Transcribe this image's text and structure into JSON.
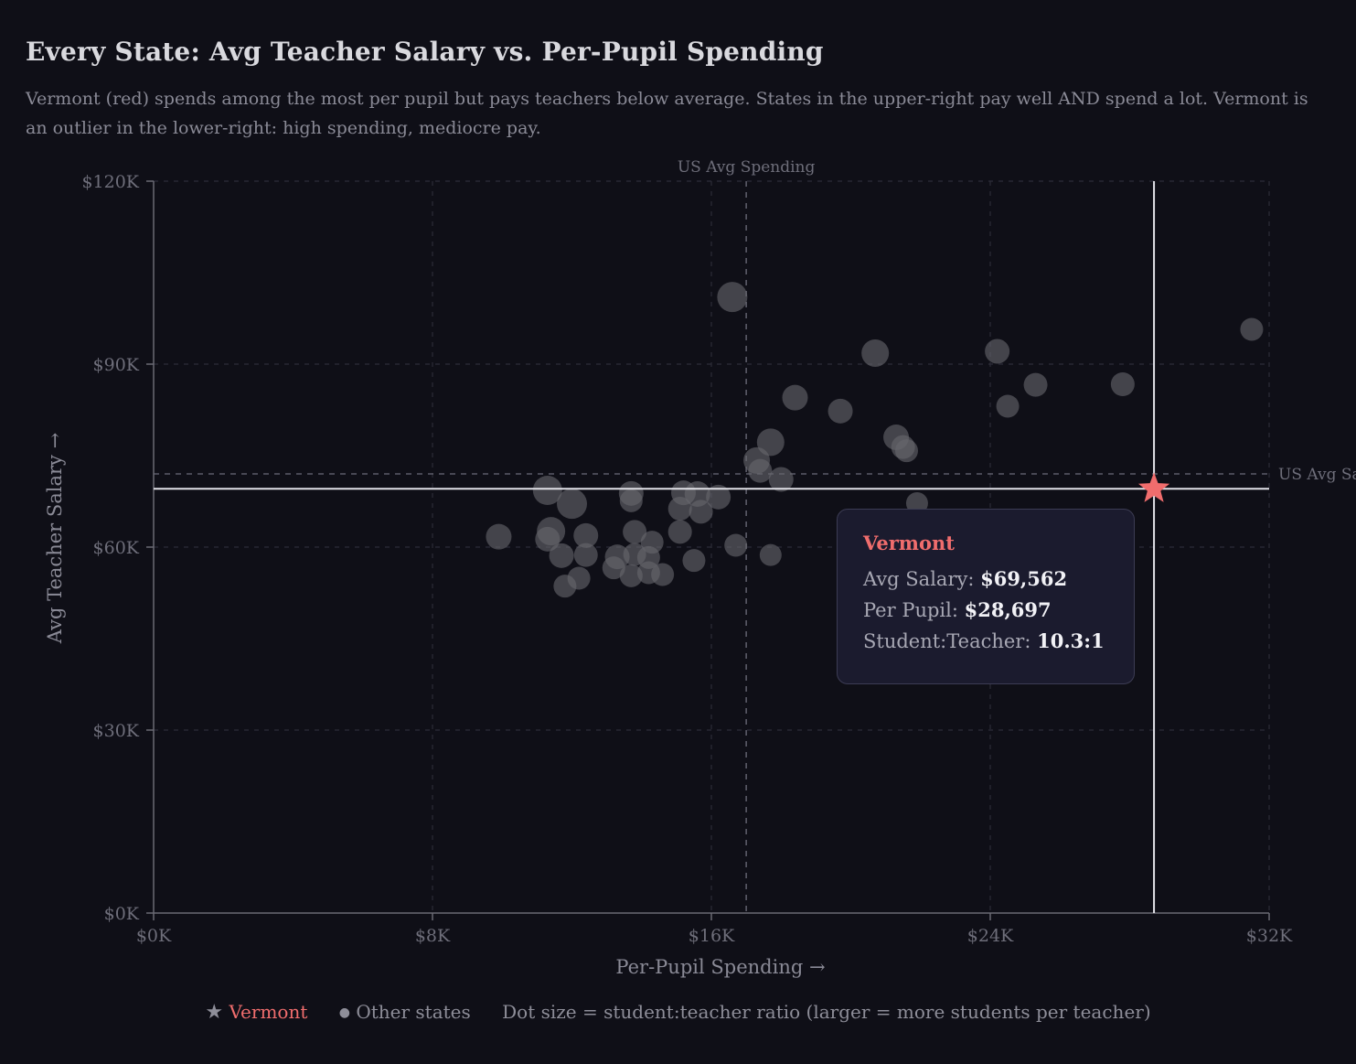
{
  "header": {
    "title": "Every State: Avg Teacher Salary vs. Per-Pupil Spending",
    "subtitle": "Vermont (red) spends among the most per pupil but pays teachers below average. States in the upper-right pay well AND spend a lot. Vermont is an outlier in the lower-right: high spending, mediocre pay."
  },
  "colors": {
    "background": "#0f0f17",
    "highlight": "#f06d6d",
    "dots": "#5a5a60",
    "grid": "#2c2c38",
    "axis": "#6a6a74"
  },
  "chart_data": {
    "type": "scatter",
    "title": "Every State: Avg Teacher Salary vs. Per-Pupil Spending",
    "xlabel": "Per-Pupil Spending →",
    "ylabel": "Avg Teacher Salary →",
    "xlim": [
      0,
      32000
    ],
    "ylim": [
      0,
      120000
    ],
    "x_ticks": [
      0,
      8000,
      16000,
      24000,
      32000
    ],
    "x_tick_labels": [
      "$0K",
      "$8K",
      "$16K",
      "$24K",
      "$32K"
    ],
    "y_ticks": [
      0,
      30000,
      60000,
      90000,
      120000
    ],
    "y_tick_labels": [
      "$0K",
      "$30K",
      "$60K",
      "$90K",
      "$120K"
    ],
    "grid": true,
    "reference_lines": {
      "us_avg_spending": {
        "value": 17000,
        "label": "US Avg Spending"
      },
      "us_avg_salary": {
        "value": 72000,
        "label": "US Avg Salary"
      }
    },
    "highlight": {
      "name": "Vermont",
      "per_pupil": 28697,
      "salary": 69562,
      "ratio": 10.3
    },
    "series": [
      {
        "name": "Other states",
        "points": [
          {
            "x": 16600,
            "y": 101000,
            "r": 16.5
          },
          {
            "x": 20700,
            "y": 91800,
            "r": 15.0
          },
          {
            "x": 24200,
            "y": 92100,
            "r": 13.5
          },
          {
            "x": 31500,
            "y": 95700,
            "r": 12.5
          },
          {
            "x": 18400,
            "y": 84500,
            "r": 14.0
          },
          {
            "x": 19700,
            "y": 82300,
            "r": 13.5
          },
          {
            "x": 25300,
            "y": 86600,
            "r": 13.0
          },
          {
            "x": 27800,
            "y": 86700,
            "r": 13.0
          },
          {
            "x": 24500,
            "y": 83100,
            "r": 12.5
          },
          {
            "x": 17700,
            "y": 77200,
            "r": 15.0
          },
          {
            "x": 17300,
            "y": 74200,
            "r": 14.5
          },
          {
            "x": 17400,
            "y": 72500,
            "r": 13.0
          },
          {
            "x": 18000,
            "y": 71100,
            "r": 13.5
          },
          {
            "x": 21300,
            "y": 78000,
            "r": 14.0
          },
          {
            "x": 21500,
            "y": 76400,
            "r": 13.0
          },
          {
            "x": 21600,
            "y": 75800,
            "r": 12.5
          },
          {
            "x": 21900,
            "y": 67200,
            "r": 12.0
          },
          {
            "x": 11300,
            "y": 69300,
            "r": 16.0
          },
          {
            "x": 12000,
            "y": 67100,
            "r": 16.5
          },
          {
            "x": 13700,
            "y": 68800,
            "r": 13.5
          },
          {
            "x": 13700,
            "y": 67600,
            "r": 12.5
          },
          {
            "x": 15200,
            "y": 68900,
            "r": 13.5
          },
          {
            "x": 15600,
            "y": 68700,
            "r": 14.0
          },
          {
            "x": 16200,
            "y": 68200,
            "r": 13.5
          },
          {
            "x": 15100,
            "y": 66300,
            "r": 13.0
          },
          {
            "x": 15700,
            "y": 65800,
            "r": 13.0
          },
          {
            "x": 11400,
            "y": 62600,
            "r": 15.5
          },
          {
            "x": 11300,
            "y": 61300,
            "r": 13.5
          },
          {
            "x": 9900,
            "y": 61700,
            "r": 14.0
          },
          {
            "x": 12400,
            "y": 61900,
            "r": 13.5
          },
          {
            "x": 13800,
            "y": 62500,
            "r": 13.0
          },
          {
            "x": 14300,
            "y": 60800,
            "r": 12.5
          },
          {
            "x": 15100,
            "y": 62500,
            "r": 13.0
          },
          {
            "x": 16700,
            "y": 60300,
            "r": 12.5
          },
          {
            "x": 11700,
            "y": 58600,
            "r": 13.5
          },
          {
            "x": 12400,
            "y": 58700,
            "r": 13.0
          },
          {
            "x": 13300,
            "y": 58400,
            "r": 13.5
          },
          {
            "x": 13800,
            "y": 58800,
            "r": 12.5
          },
          {
            "x": 14200,
            "y": 58300,
            "r": 12.5
          },
          {
            "x": 15500,
            "y": 57800,
            "r": 12.5
          },
          {
            "x": 17700,
            "y": 58700,
            "r": 12.0
          },
          {
            "x": 13200,
            "y": 56600,
            "r": 12.5
          },
          {
            "x": 13700,
            "y": 55300,
            "r": 12.5
          },
          {
            "x": 14200,
            "y": 55800,
            "r": 12.5
          },
          {
            "x": 14600,
            "y": 55500,
            "r": 12.5
          },
          {
            "x": 12200,
            "y": 54900,
            "r": 12.5
          },
          {
            "x": 11800,
            "y": 53600,
            "r": 12.5
          }
        ]
      }
    ]
  },
  "tooltip": {
    "name": "Vermont",
    "salary_label": "Avg Salary: ",
    "salary_value": "$69,562",
    "spending_label": "Per Pupil: ",
    "spending_value": "$28,697",
    "ratio_label": "Student:Teacher: ",
    "ratio_value": "10.3:1"
  },
  "legend": {
    "vermont_glyph": "★",
    "vermont_label": "Vermont",
    "others_glyph": "●",
    "others_label": "Other states",
    "note": "Dot size = student:teacher ratio (larger = more students per teacher)"
  }
}
